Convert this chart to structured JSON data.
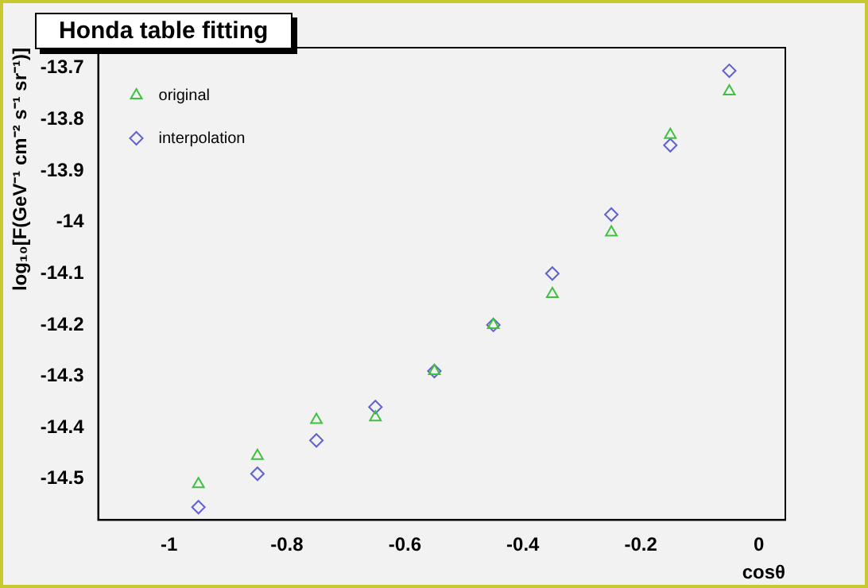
{
  "chart_data": {
    "type": "scatter",
    "title": "Honda table fitting",
    "xlabel": "cosθ",
    "ylabel": "log₁₀[F(GeV⁻¹ cm⁻² s⁻¹ sr⁻¹)]",
    "x": [
      -0.95,
      -0.85,
      -0.75,
      -0.65,
      -0.55,
      -0.45,
      -0.35,
      -0.25,
      -0.15,
      -0.05
    ],
    "series": [
      {
        "name": "original",
        "color": "#40c040",
        "marker": "triangle",
        "values": [
          -14.51,
          -14.455,
          -14.385,
          -14.38,
          -14.29,
          -14.2,
          -14.14,
          -14.02,
          -13.83,
          -13.745
        ]
      },
      {
        "name": "interpolation",
        "color": "#6060d0",
        "marker": "diamond",
        "values": [
          -14.555,
          -14.49,
          -14.425,
          -14.36,
          -14.29,
          -14.2,
          -14.1,
          -13.985,
          -13.85,
          -13.705
        ]
      }
    ],
    "xlim": [
      -1.12,
      0.045
    ],
    "xticks": [
      -1,
      -0.8,
      -0.6,
      -0.4,
      -0.2,
      0
    ],
    "ylim": [
      -14.58,
      -13.66
    ],
    "yticks": [
      -14.5,
      -14.4,
      -14.3,
      -14.2,
      -14.1,
      -14,
      -13.9,
      -13.8,
      -13.7
    ],
    "grid": false,
    "legend": "top left"
  }
}
